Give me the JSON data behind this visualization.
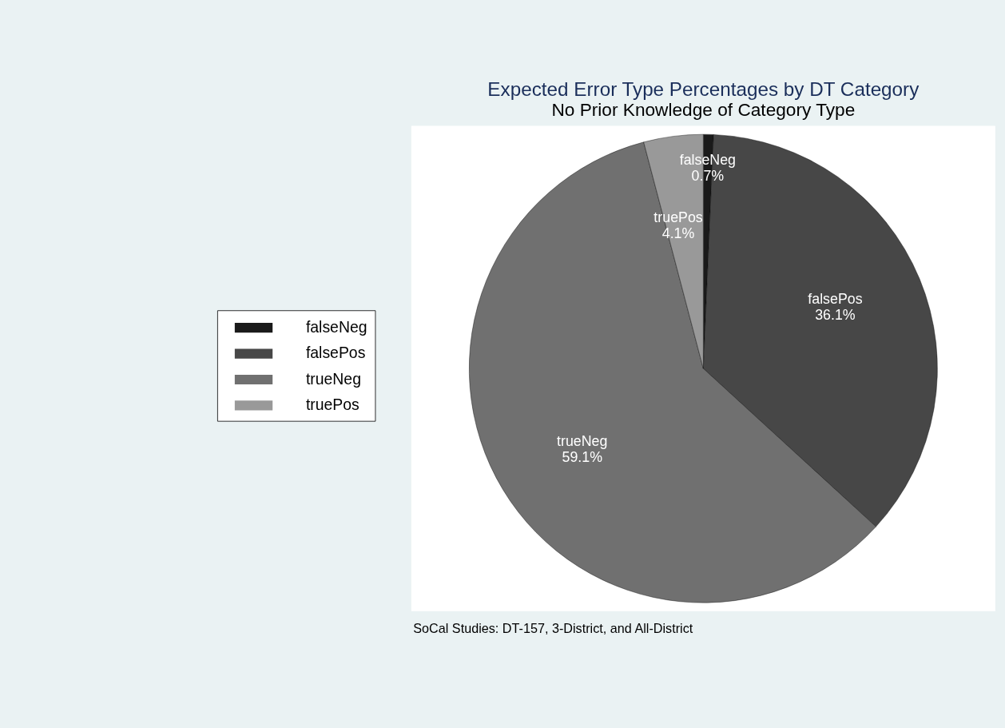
{
  "chart_data": {
    "type": "pie",
    "title": "Expected Error Type Percentages by DT Category",
    "subtitle": "No Prior Knowledge of Category Type",
    "categories": [
      "falseNeg",
      "falsePos",
      "trueNeg",
      "truePos"
    ],
    "values": [
      0.7,
      36.1,
      59.1,
      4.1
    ],
    "value_labels": [
      "0.7%",
      "36.1%",
      "59.1%",
      "4.1%"
    ],
    "colors": [
      "#1a1a1a",
      "#474747",
      "#707070",
      "#999999"
    ],
    "legend": "left",
    "annotations": [
      "SoCal Studies: DT-157, 3-District, and All-District"
    ]
  }
}
